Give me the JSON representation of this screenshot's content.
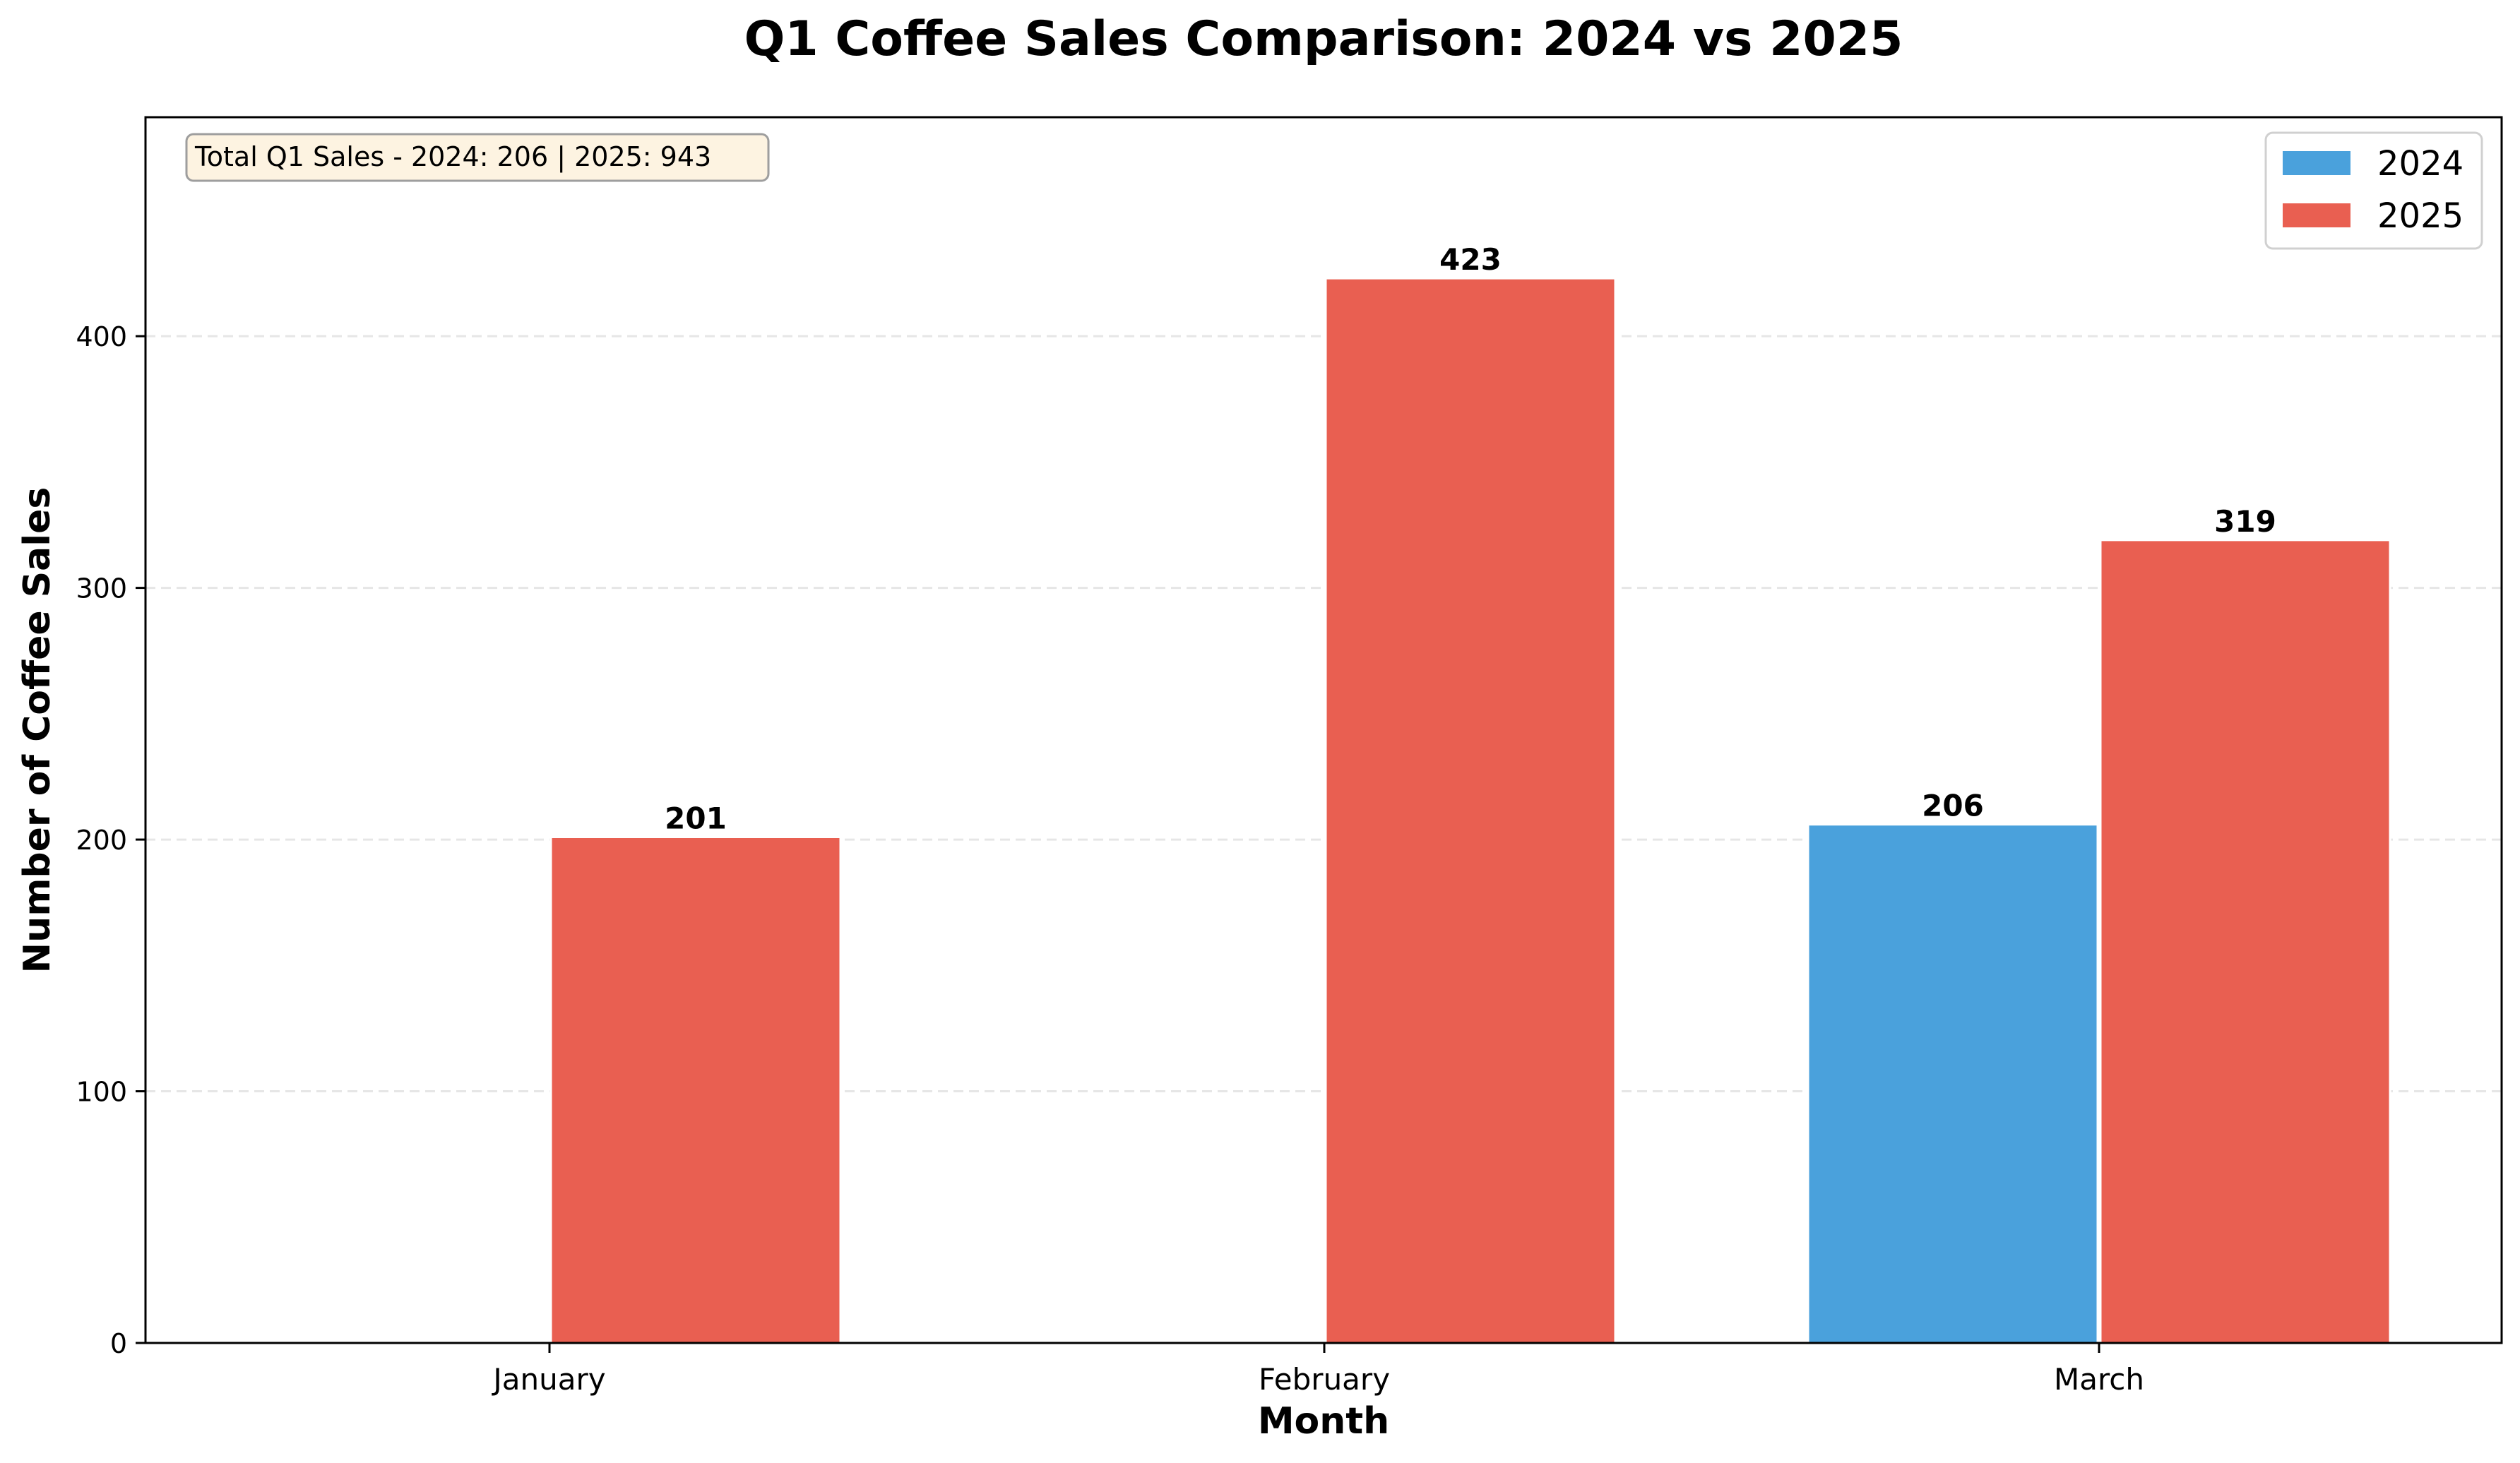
{
  "chart_data": {
    "type": "bar",
    "title": "Q1 Coffee Sales Comparison: 2024 vs 2025",
    "xlabel": "Month",
    "ylabel": "Number of Coffee Sales",
    "categories": [
      "January",
      "February",
      "March"
    ],
    "series": [
      {
        "name": "2024",
        "values": [
          0,
          0,
          206
        ],
        "color": "#4aa1dc",
        "labels": [
          "",
          "",
          "206"
        ]
      },
      {
        "name": "2025",
        "values": [
          201,
          423,
          319
        ],
        "color": "#e95f51",
        "labels": [
          "201",
          "423",
          "319"
        ]
      }
    ],
    "ylim": [
      0,
      487
    ],
    "yticks": [
      0,
      100,
      200,
      300,
      400
    ],
    "ytick_labels": [
      "0",
      "100",
      "200",
      "300",
      "400"
    ],
    "grid": "y-dashed",
    "legend_position": "top-right",
    "annotation": "Total Q1 Sales - 2024: 206 | 2025: 943",
    "annotation_bg": "#fdf3e1",
    "grid_color": "#e6e6e6"
  }
}
